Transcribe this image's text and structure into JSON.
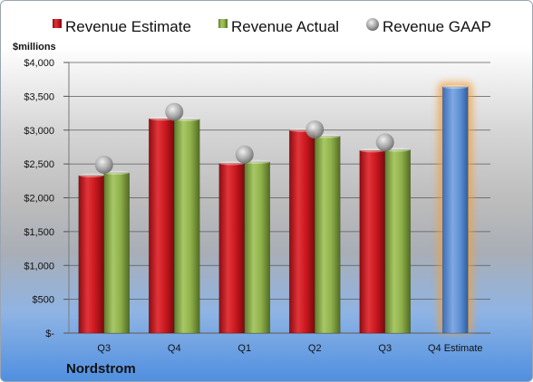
{
  "chart_data": {
    "type": "bar",
    "title": "",
    "xlabel": "Nordstrom",
    "ylabel": "$millions",
    "ylim": [
      0,
      4000
    ],
    "yticks": [
      0,
      500,
      1000,
      1500,
      2000,
      2500,
      3000,
      3500,
      4000
    ],
    "ytick_labels": [
      "$-",
      "$500",
      "$1,000",
      "$1,500",
      "$2,000",
      "$2,500",
      "$3,000",
      "$3,500",
      "$4,000"
    ],
    "categories": [
      "Q3",
      "Q4",
      "Q1",
      "Q2",
      "Q3",
      "Q4 Estimate"
    ],
    "legend_position": "top",
    "grid": true,
    "series": [
      {
        "name": "Revenue Estimate",
        "kind": "bar",
        "color": "#c8181e",
        "values": [
          2330,
          3170,
          2510,
          3000,
          2700,
          null
        ]
      },
      {
        "name": "Revenue Actual",
        "kind": "bar",
        "color": "#8fb04a",
        "values": [
          2370,
          3160,
          2530,
          2910,
          2710,
          null
        ]
      },
      {
        "name": "Revenue GAAP",
        "kind": "marker",
        "color": "#a0a0a0",
        "values": [
          2490,
          3270,
          2640,
          3010,
          2820,
          null
        ]
      },
      {
        "name": "",
        "kind": "bar-highlight",
        "color": "#5b8fd3",
        "glow": "#f0a040",
        "values": [
          null,
          null,
          null,
          null,
          null,
          3640
        ]
      }
    ]
  }
}
